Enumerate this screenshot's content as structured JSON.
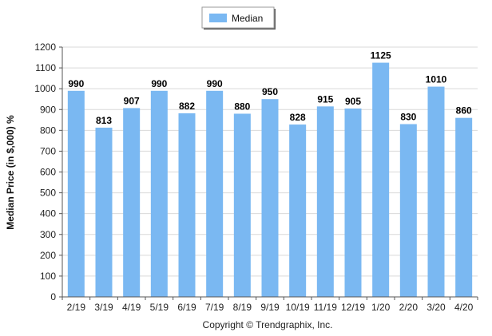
{
  "chart_data": {
    "type": "bar",
    "categories": [
      "2/19",
      "3/19",
      "4/19",
      "5/19",
      "6/19",
      "7/19",
      "8/19",
      "9/19",
      "10/19",
      "11/19",
      "12/19",
      "1/20",
      "2/20",
      "3/20",
      "4/20"
    ],
    "series": [
      {
        "name": "Median",
        "values": [
          990,
          813,
          907,
          990,
          882,
          990,
          880,
          950,
          828,
          915,
          905,
          1125,
          830,
          1010,
          860
        ],
        "color": "#7ab8f2"
      }
    ],
    "ylabel": "Median Price (in $,000) %",
    "xlabel": "",
    "ylim": [
      0,
      1200
    ],
    "yticks": [
      0,
      100,
      200,
      300,
      400,
      500,
      600,
      700,
      800,
      900,
      1000,
      1100,
      1200
    ],
    "grid": true,
    "legend_position": "top-center",
    "data_labels": true
  },
  "footer": {
    "copyright": "Copyright © Trendgraphix, Inc."
  }
}
